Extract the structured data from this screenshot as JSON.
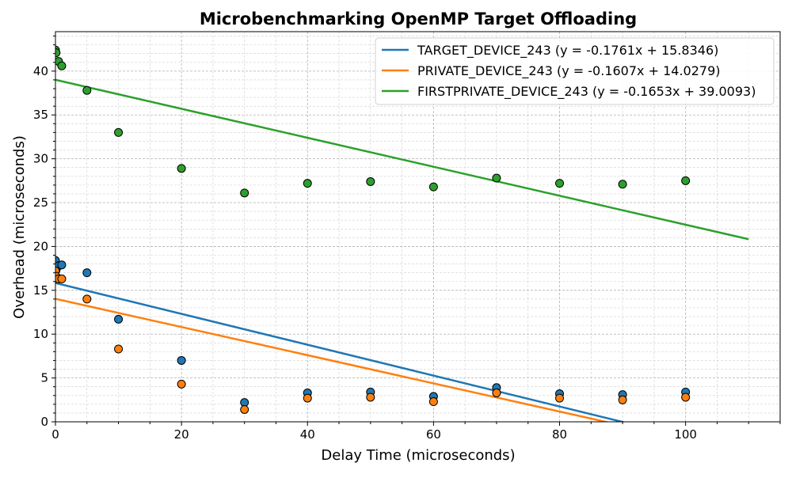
{
  "chart_data": {
    "type": "scatter",
    "title": "Microbenchmarking OpenMP Target Offloading",
    "xlabel": "Delay Time (microseconds)",
    "ylabel": "Overhead (microseconds)",
    "xlim": [
      0,
      115
    ],
    "ylim": [
      0,
      44.5
    ],
    "xticks": [
      0,
      20,
      40,
      60,
      80,
      100
    ],
    "yticks": [
      0,
      5,
      10,
      15,
      20,
      25,
      30,
      35,
      40
    ],
    "grid": true,
    "legend_position": "top-right",
    "series": [
      {
        "name": "TARGET_DEVICE_243",
        "legend_label": "TARGET_DEVICE_243 (y = -0.1761x + 15.8346)",
        "color": "#1f77b4",
        "points": [
          {
            "x": 0,
            "y": 18.4
          },
          {
            "x": 0.1,
            "y": 17.3
          },
          {
            "x": 0.5,
            "y": 17.8
          },
          {
            "x": 1,
            "y": 17.9
          },
          {
            "x": 5,
            "y": 17.0
          },
          {
            "x": 10,
            "y": 11.7
          },
          {
            "x": 20,
            "y": 7.0
          },
          {
            "x": 30,
            "y": 2.2
          },
          {
            "x": 40,
            "y": 3.3
          },
          {
            "x": 50,
            "y": 3.4
          },
          {
            "x": 60,
            "y": 2.9
          },
          {
            "x": 70,
            "y": 3.9
          },
          {
            "x": 80,
            "y": 3.2
          },
          {
            "x": 90,
            "y": 3.1
          },
          {
            "x": 100,
            "y": 3.4
          }
        ],
        "fit": {
          "slope": -0.1761,
          "intercept": 15.8346
        }
      },
      {
        "name": "PRIVATE_DEVICE_243",
        "legend_label": "PRIVATE_DEVICE_243 (y = -0.1607x + 14.0279)",
        "color": "#ff7f0e",
        "points": [
          {
            "x": 0,
            "y": 17.2
          },
          {
            "x": 0.1,
            "y": 16.6
          },
          {
            "x": 0.5,
            "y": 16.3
          },
          {
            "x": 1,
            "y": 16.3
          },
          {
            "x": 5,
            "y": 14.0
          },
          {
            "x": 10,
            "y": 8.3
          },
          {
            "x": 20,
            "y": 4.3
          },
          {
            "x": 30,
            "y": 1.4
          },
          {
            "x": 40,
            "y": 2.7
          },
          {
            "x": 50,
            "y": 2.8
          },
          {
            "x": 60,
            "y": 2.3
          },
          {
            "x": 70,
            "y": 3.3
          },
          {
            "x": 80,
            "y": 2.7
          },
          {
            "x": 90,
            "y": 2.5
          },
          {
            "x": 100,
            "y": 2.8
          }
        ],
        "fit": {
          "slope": -0.1607,
          "intercept": 14.0279
        }
      },
      {
        "name": "FIRSTPRIVATE_DEVICE_243",
        "legend_label": "FIRSTPRIVATE_DEVICE_243 (y = -0.1653x + 39.0093)",
        "color": "#2ca02c",
        "points": [
          {
            "x": 0,
            "y": 42.4
          },
          {
            "x": 0.1,
            "y": 42.1
          },
          {
            "x": 0.5,
            "y": 41.1
          },
          {
            "x": 1,
            "y": 40.6
          },
          {
            "x": 5,
            "y": 37.8
          },
          {
            "x": 10,
            "y": 33.0
          },
          {
            "x": 20,
            "y": 28.9
          },
          {
            "x": 30,
            "y": 26.1
          },
          {
            "x": 40,
            "y": 27.2
          },
          {
            "x": 50,
            "y": 27.4
          },
          {
            "x": 60,
            "y": 26.8
          },
          {
            "x": 70,
            "y": 27.8
          },
          {
            "x": 80,
            "y": 27.2
          },
          {
            "x": 90,
            "y": 27.1
          },
          {
            "x": 100,
            "y": 27.5
          }
        ],
        "fit": {
          "slope": -0.1653,
          "intercept": 39.0093
        }
      }
    ],
    "fit_x_range": [
      0,
      110
    ]
  }
}
